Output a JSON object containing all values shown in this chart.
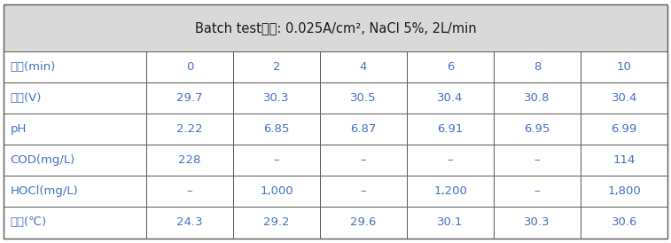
{
  "title_parts": [
    "Batch test조건: 0.025A/cm",
    "2",
    ", NaCl 5%, 2L/min"
  ],
  "header_bg": "#d9d9d9",
  "row_label_color": "#4472c4",
  "data_color": "#4472c4",
  "border_color": "#5a5a5a",
  "outer_bg": "#ffffff",
  "row_labels": [
    "시간(min)",
    "전압(V)",
    "pH",
    "COD(mg/L)",
    "HOCl(mg/L)",
    "온도(℃)"
  ],
  "table_data": [
    [
      "0",
      "2",
      "4",
      "6",
      "8",
      "10"
    ],
    [
      "29.7",
      "30.3",
      "30.5",
      "30.4",
      "30.8",
      "30.4"
    ],
    [
      "2.22",
      "6.85",
      "6.87",
      "6.91",
      "6.95",
      "6.99"
    ],
    [
      "228",
      "–",
      "–",
      "–",
      "–",
      "114"
    ],
    [
      "–",
      "1,000",
      "–",
      "1,200",
      "–",
      "1,800"
    ],
    [
      "24.3",
      "29.2",
      "29.6",
      "30.1",
      "30.3",
      "30.6"
    ]
  ],
  "fig_width": 7.57,
  "fig_height": 2.74,
  "dpi": 100,
  "title_fontsize": 10.5,
  "cell_fontsize": 9.5,
  "label_fontsize": 9.5
}
